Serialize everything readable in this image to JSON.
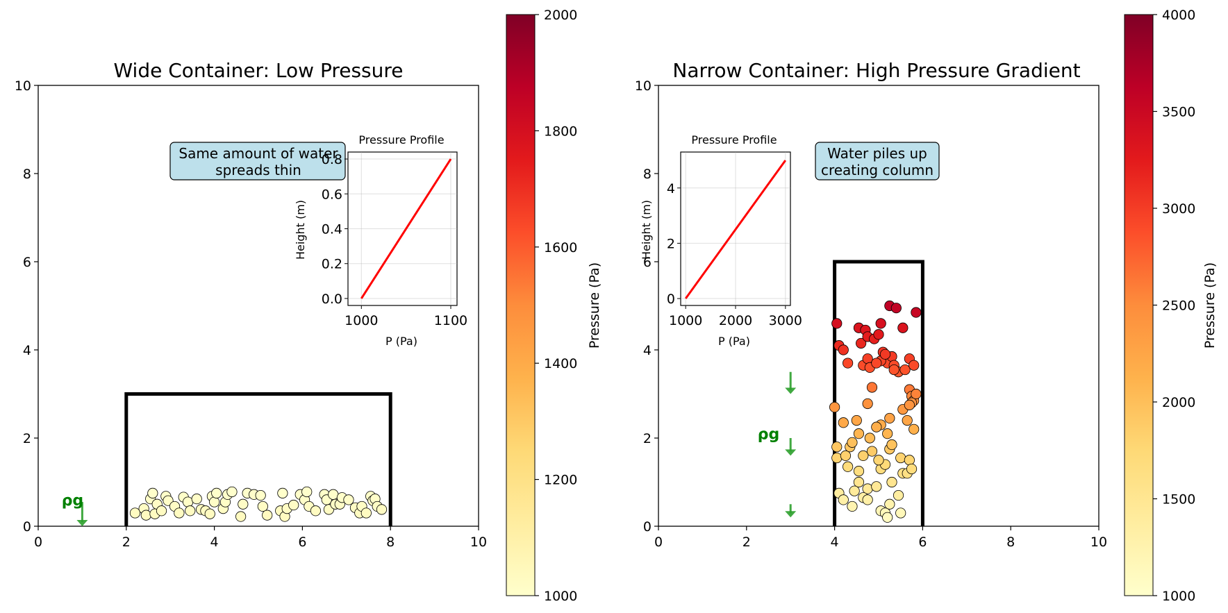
{
  "chart_data": [
    {
      "type": "scatter",
      "title": "Wide Container: Low Pressure",
      "xlim": [
        0,
        10
      ],
      "ylim": [
        0,
        10
      ],
      "xticks": [
        "0",
        "2",
        "4",
        "6",
        "8",
        "10"
      ],
      "yticks": [
        "0",
        "2",
        "4",
        "6",
        "8",
        "10"
      ],
      "grid": false,
      "container": {
        "x0": 2,
        "x1": 8,
        "y0": 0,
        "y1": 3
      },
      "annotation": "Same amount of water\nspreads thin",
      "rho_label": "ρg",
      "arrows": [
        {
          "x": 1,
          "y_from": 0.55,
          "y_to": 0.0
        }
      ],
      "rho_pos": {
        "x": 0.78,
        "y": 0.6
      },
      "colorbar": {
        "label": "Pressure (Pa)",
        "min": 1000,
        "max": 2000,
        "ticks": [
          "1000",
          "1200",
          "1400",
          "1600",
          "1800",
          "2000"
        ]
      },
      "particles": [
        [
          2.2,
          0.3
        ],
        [
          2.4,
          0.4
        ],
        [
          2.45,
          0.25
        ],
        [
          2.55,
          0.62
        ],
        [
          2.6,
          0.75
        ],
        [
          2.65,
          0.28
        ],
        [
          2.7,
          0.5
        ],
        [
          2.8,
          0.35
        ],
        [
          2.9,
          0.68
        ],
        [
          2.95,
          0.58
        ],
        [
          3.1,
          0.45
        ],
        [
          3.2,
          0.3
        ],
        [
          3.3,
          0.66
        ],
        [
          3.4,
          0.55
        ],
        [
          3.45,
          0.35
        ],
        [
          3.6,
          0.62
        ],
        [
          3.7,
          0.38
        ],
        [
          3.8,
          0.35
        ],
        [
          3.9,
          0.28
        ],
        [
          3.95,
          0.68
        ],
        [
          4.0,
          0.55
        ],
        [
          4.05,
          0.75
        ],
        [
          4.2,
          0.4
        ],
        [
          4.25,
          0.55
        ],
        [
          4.3,
          0.72
        ],
        [
          4.4,
          0.78
        ],
        [
          4.6,
          0.22
        ],
        [
          4.65,
          0.5
        ],
        [
          4.75,
          0.75
        ],
        [
          4.9,
          0.72
        ],
        [
          5.05,
          0.7
        ],
        [
          5.1,
          0.45
        ],
        [
          5.2,
          0.25
        ],
        [
          5.5,
          0.35
        ],
        [
          5.55,
          0.75
        ],
        [
          5.6,
          0.22
        ],
        [
          5.65,
          0.4
        ],
        [
          5.8,
          0.48
        ],
        [
          5.95,
          0.72
        ],
        [
          6.05,
          0.6
        ],
        [
          6.1,
          0.78
        ],
        [
          6.15,
          0.45
        ],
        [
          6.3,
          0.35
        ],
        [
          6.5,
          0.72
        ],
        [
          6.55,
          0.6
        ],
        [
          6.6,
          0.38
        ],
        [
          6.7,
          0.72
        ],
        [
          6.75,
          0.5
        ],
        [
          6.85,
          0.5
        ],
        [
          6.9,
          0.65
        ],
        [
          7.05,
          0.6
        ],
        [
          7.2,
          0.42
        ],
        [
          7.3,
          0.3
        ],
        [
          7.35,
          0.45
        ],
        [
          7.45,
          0.3
        ],
        [
          7.55,
          0.68
        ],
        [
          7.6,
          0.58
        ],
        [
          7.65,
          0.62
        ],
        [
          7.7,
          0.45
        ],
        [
          7.8,
          0.38
        ]
      ],
      "inset": {
        "title": "Pressure Profile",
        "xlabel": "P (Pa)",
        "ylabel": "Height (m)",
        "xlim": [
          985,
          1107
        ],
        "ylim": [
          -0.04,
          0.84
        ],
        "xticks": [
          1000,
          1100
        ],
        "yticks": [
          0.0,
          0.2,
          0.4,
          0.6,
          0.8
        ],
        "ytick_labels": [
          "0.0",
          "0.2",
          "0.4",
          "0.6",
          "0.8"
        ],
        "line": {
          "x": [
            1000,
            1100
          ],
          "y": [
            0.0,
            0.8
          ]
        }
      }
    },
    {
      "type": "scatter",
      "title": "Narrow Container: High Pressure Gradient",
      "xlim": [
        0,
        10
      ],
      "ylim": [
        0,
        10
      ],
      "xticks": [
        "0",
        "2",
        "4",
        "6",
        "8",
        "10"
      ],
      "yticks": [
        "0",
        "2",
        "4",
        "6",
        "8",
        "10"
      ],
      "grid": false,
      "container": {
        "x0": 4,
        "x1": 6,
        "y0": 0,
        "y1": 6
      },
      "annotation": "Water piles up\ncreating column",
      "rho_label": "ρg",
      "arrows": [
        {
          "x": 3,
          "y_from": 3.5,
          "y_to": 3.0
        },
        {
          "x": 3,
          "y_from": 2.0,
          "y_to": 1.6
        },
        {
          "x": 3,
          "y_from": 0.5,
          "y_to": 0.2
        }
      ],
      "rho_pos": {
        "x": 2.5,
        "y": 2.1
      },
      "colorbar": {
        "label": "Pressure (Pa)",
        "min": 1000,
        "max": 4000,
        "ticks": [
          "1000",
          "1500",
          "2000",
          "2500",
          "3000",
          "3500",
          "4000"
        ]
      },
      "particles": [
        [
          4.05,
          4.6
        ],
        [
          4.1,
          4.1
        ],
        [
          4.2,
          4.0
        ],
        [
          4.3,
          3.7
        ],
        [
          4.55,
          4.5
        ],
        [
          4.6,
          4.15
        ],
        [
          4.65,
          3.65
        ],
        [
          4.7,
          4.45
        ],
        [
          4.75,
          3.8
        ],
        [
          4.8,
          3.6
        ],
        [
          4.75,
          4.3
        ],
        [
          4.9,
          4.25
        ],
        [
          5.0,
          4.35
        ],
        [
          5.05,
          4.6
        ],
        [
          5.1,
          3.95
        ],
        [
          5.2,
          3.7
        ],
        [
          5.25,
          5.0
        ],
        [
          5.3,
          3.85
        ],
        [
          5.35,
          3.65
        ],
        [
          5.4,
          4.95
        ],
        [
          5.45,
          3.5
        ],
        [
          5.55,
          4.5
        ],
        [
          5.6,
          3.55
        ],
        [
          5.7,
          3.8
        ],
        [
          5.8,
          3.65
        ],
        [
          5.85,
          4.85
        ],
        [
          5.05,
          3.75
        ],
        [
          5.15,
          3.9
        ],
        [
          5.35,
          3.55
        ],
        [
          4.95,
          3.7
        ],
        [
          4.0,
          2.7
        ],
        [
          4.2,
          2.35
        ],
        [
          4.5,
          2.4
        ],
        [
          4.75,
          2.78
        ],
        [
          4.85,
          3.15
        ],
        [
          5.05,
          2.3
        ],
        [
          5.25,
          2.45
        ],
        [
          5.55,
          2.65
        ],
        [
          5.65,
          2.4
        ],
        [
          5.7,
          3.1
        ],
        [
          5.75,
          2.95
        ],
        [
          5.8,
          2.85
        ],
        [
          5.85,
          3.0
        ],
        [
          5.8,
          2.2
        ],
        [
          5.75,
          2.8
        ],
        [
          4.55,
          2.1
        ],
        [
          4.8,
          2.0
        ],
        [
          5.2,
          2.1
        ],
        [
          4.95,
          2.25
        ],
        [
          5.7,
          2.75
        ],
        [
          4.05,
          1.8
        ],
        [
          4.05,
          1.55
        ],
        [
          4.25,
          1.6
        ],
        [
          4.35,
          1.8
        ],
        [
          4.4,
          1.9
        ],
        [
          4.55,
          1.25
        ],
        [
          4.55,
          1.0
        ],
        [
          4.75,
          0.85
        ],
        [
          4.85,
          1.7
        ],
        [
          5.05,
          1.3
        ],
        [
          5.15,
          1.4
        ],
        [
          5.25,
          1.75
        ],
        [
          5.3,
          1.85
        ],
        [
          5.3,
          1.0
        ],
        [
          5.5,
          1.55
        ],
        [
          5.55,
          1.2
        ],
        [
          5.65,
          1.2
        ],
        [
          5.7,
          1.5
        ],
        [
          5.75,
          1.3
        ],
        [
          4.65,
          1.6
        ],
        [
          4.1,
          0.75
        ],
        [
          4.2,
          0.6
        ],
        [
          4.4,
          0.45
        ],
        [
          4.65,
          0.65
        ],
        [
          4.75,
          0.6
        ],
        [
          5.05,
          0.35
        ],
        [
          5.15,
          0.3
        ],
        [
          5.2,
          0.2
        ],
        [
          5.25,
          0.5
        ],
        [
          5.5,
          0.3
        ],
        [
          4.3,
          1.35
        ],
        [
          4.95,
          0.9
        ],
        [
          5.0,
          1.5
        ],
        [
          4.45,
          0.8
        ],
        [
          5.45,
          0.7
        ]
      ],
      "inset": {
        "title": "Pressure Profile",
        "xlabel": "P (Pa)",
        "ylabel": "Height (m)",
        "xlim": [
          900,
          3100
        ],
        "ylim": [
          -0.25,
          5.3
        ],
        "xticks": [
          1000,
          2000,
          3000
        ],
        "yticks": [
          0,
          2,
          4
        ],
        "ytick_labels": [
          "0",
          "2",
          "4"
        ],
        "line": {
          "x": [
            1000,
            3000
          ],
          "y": [
            0.0,
            5.0
          ]
        }
      }
    }
  ]
}
